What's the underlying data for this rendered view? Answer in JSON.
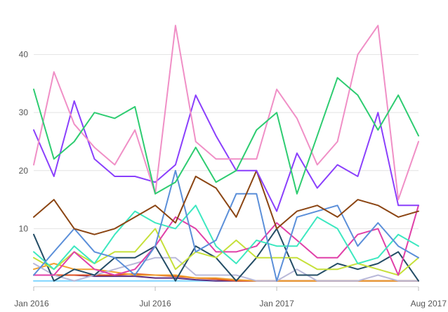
{
  "chart_data": {
    "type": "line",
    "title": "",
    "xlabel": "",
    "ylabel": "",
    "x": [
      "2016-01",
      "2016-02",
      "2016-03",
      "2016-04",
      "2016-05",
      "2016-06",
      "2016-07",
      "2016-08",
      "2016-09",
      "2016-10",
      "2016-11",
      "2016-12",
      "2017-01",
      "2017-02",
      "2017-03",
      "2017-04",
      "2017-05",
      "2017-06",
      "2017-07",
      "2017-08"
    ],
    "xticks": [
      {
        "value": "2016-01",
        "label": "Jan 2016"
      },
      {
        "value": "2016-07",
        "label": "Jul 2016"
      },
      {
        "value": "2017-01",
        "label": "Jan 2017"
      },
      {
        "value": "2017-08",
        "label": "Aug 2017"
      }
    ],
    "yticks": [
      10,
      20,
      30,
      40
    ],
    "ylim": [
      0,
      46
    ],
    "grid": true,
    "legend": "none",
    "series": [
      {
        "color": "#2ecc71",
        "values": [
          34,
          22,
          25,
          30,
          29,
          31,
          16,
          18,
          24,
          18,
          20,
          27,
          30,
          16,
          26,
          36,
          33,
          27,
          33,
          26
        ]
      },
      {
        "color": "#f08fc6",
        "values": [
          21,
          37,
          28,
          24,
          21,
          27,
          16,
          45,
          25,
          22,
          22,
          22,
          34,
          29,
          21,
          25,
          40,
          45,
          15,
          25
        ]
      },
      {
        "color": "#8a3ffc",
        "values": [
          27,
          19,
          32,
          22,
          19,
          19,
          18,
          21,
          33,
          26,
          20,
          20,
          13,
          23,
          17,
          21,
          19,
          30,
          14,
          14
        ]
      },
      {
        "color": "#8b4513",
        "values": [
          12,
          15,
          10,
          9,
          10,
          12,
          14,
          11,
          19,
          17,
          12,
          20,
          10,
          13,
          14,
          12,
          15,
          14,
          12,
          13
        ]
      },
      {
        "color": "#5b8fd9",
        "values": [
          2,
          6,
          10,
          6,
          5,
          2,
          7,
          20,
          6,
          8,
          16,
          16,
          1,
          12,
          13,
          14,
          7,
          11,
          7,
          5
        ]
      },
      {
        "color": "#3de8c0",
        "values": [
          6,
          3,
          7,
          4,
          9,
          13,
          11,
          10,
          14,
          7,
          4,
          8,
          7,
          7,
          12,
          10,
          4,
          5,
          9,
          7
        ]
      },
      {
        "color": "#e040a8",
        "values": [
          2,
          2,
          6,
          3,
          2,
          3,
          7,
          12,
          10,
          6,
          6,
          7,
          11,
          8,
          5,
          5,
          9,
          10,
          2,
          14
        ]
      },
      {
        "color": "#c6e03a",
        "values": [
          5,
          3,
          6,
          4,
          6,
          6,
          10,
          3,
          6,
          5,
          8,
          5,
          5,
          5,
          3,
          3,
          4,
          3,
          2,
          5
        ]
      },
      {
        "color": "#244d66",
        "values": [
          9,
          1,
          3,
          2,
          5,
          5,
          7,
          1,
          7,
          5,
          1,
          5,
          10,
          2,
          2,
          4,
          3,
          4,
          6,
          1
        ]
      },
      {
        "color": "#b9b9d9",
        "values": [
          4,
          2,
          1,
          2,
          3,
          4,
          5,
          5,
          2,
          2,
          2,
          1,
          1,
          3,
          1,
          1,
          1,
          2,
          1,
          1
        ]
      },
      {
        "color": "#f0a030",
        "values": [
          3,
          4,
          3,
          3,
          2.5,
          2,
          2,
          2,
          1.5,
          1.5,
          1.2,
          1,
          1,
          1,
          1,
          1,
          1,
          1,
          1,
          1
        ]
      },
      {
        "color": "#e05020",
        "values": [
          2,
          2,
          2,
          2,
          2,
          2.2,
          2,
          1.8,
          1.5,
          1.3,
          1,
          1,
          1,
          1,
          1,
          1,
          1,
          1,
          1,
          1
        ]
      },
      {
        "color": "#5a2d82",
        "values": [
          2,
          2,
          2,
          1.8,
          1.8,
          1.8,
          1.5,
          1.5,
          1.2,
          1,
          1,
          1,
          1,
          1,
          1,
          1,
          1,
          1,
          1,
          1
        ]
      },
      {
        "color": "#7fd6ff",
        "values": [
          1,
          1,
          1,
          1,
          1,
          1,
          1,
          1,
          1,
          1,
          1,
          1,
          1,
          1,
          1,
          1,
          1,
          1,
          1,
          1
        ]
      }
    ]
  }
}
